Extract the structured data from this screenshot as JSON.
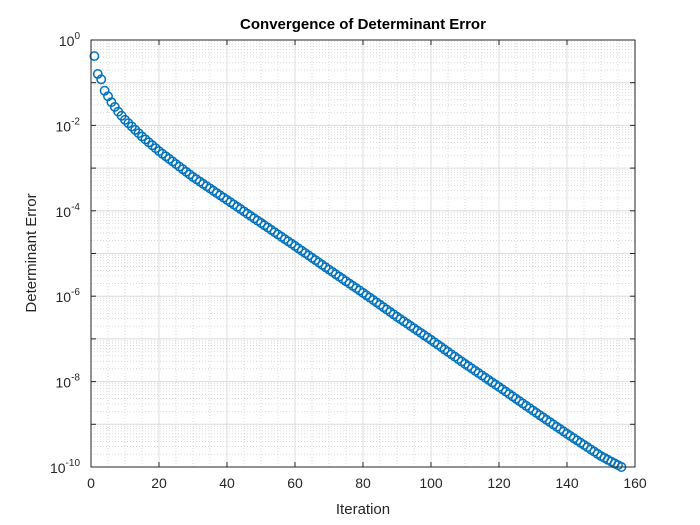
{
  "chart_data": {
    "type": "scatter",
    "title": "Convergence of Determinant Error",
    "xlabel": "Iteration",
    "ylabel": "Determinant Error",
    "x_scale": "linear",
    "y_scale": "log",
    "xlim": [
      0,
      160
    ],
    "ylim": [
      1e-10,
      1
    ],
    "x_ticks": [
      0,
      20,
      40,
      60,
      80,
      100,
      120,
      140,
      160
    ],
    "y_ticks": [
      {
        "base": "10",
        "exp": "0"
      },
      {
        "base": "10",
        "exp": "-2"
      },
      {
        "base": "10",
        "exp": "-4"
      },
      {
        "base": "10",
        "exp": "-6"
      },
      {
        "base": "10",
        "exp": "-8"
      },
      {
        "base": "10",
        "exp": "-10"
      }
    ],
    "grid": true,
    "minor_grid": true,
    "box": true,
    "marker": "circle-open",
    "color": "#0072BD",
    "points_sampled": [
      {
        "x": 1,
        "y": 0.42
      },
      {
        "x": 2,
        "y": 0.16
      },
      {
        "x": 3,
        "y": 0.12
      },
      {
        "x": 4,
        "y": 0.065
      },
      {
        "x": 5,
        "y": 0.048
      },
      {
        "x": 6,
        "y": 0.035
      },
      {
        "x": 8,
        "y": 0.021
      },
      {
        "x": 10,
        "y": 0.0135
      },
      {
        "x": 15,
        "y": 0.0055
      },
      {
        "x": 20,
        "y": 0.0025
      },
      {
        "x": 30,
        "y": 0.00062
      },
      {
        "x": 40,
        "y": 0.00018
      },
      {
        "x": 50,
        "y": 5.2e-05
      },
      {
        "x": 60,
        "y": 1.5e-05
      },
      {
        "x": 70,
        "y": 4.2e-06
      },
      {
        "x": 80,
        "y": 1.2e-06
      },
      {
        "x": 90,
        "y": 3.3e-07
      },
      {
        "x": 100,
        "y": 9.5e-08
      },
      {
        "x": 110,
        "y": 2.6e-08
      },
      {
        "x": 120,
        "y": 7.5e-09
      },
      {
        "x": 130,
        "y": 2.1e-09
      },
      {
        "x": 140,
        "y": 6e-10
      },
      {
        "x": 150,
        "y": 1.8e-10
      },
      {
        "x": 156,
        "y": 1e-10
      }
    ]
  }
}
